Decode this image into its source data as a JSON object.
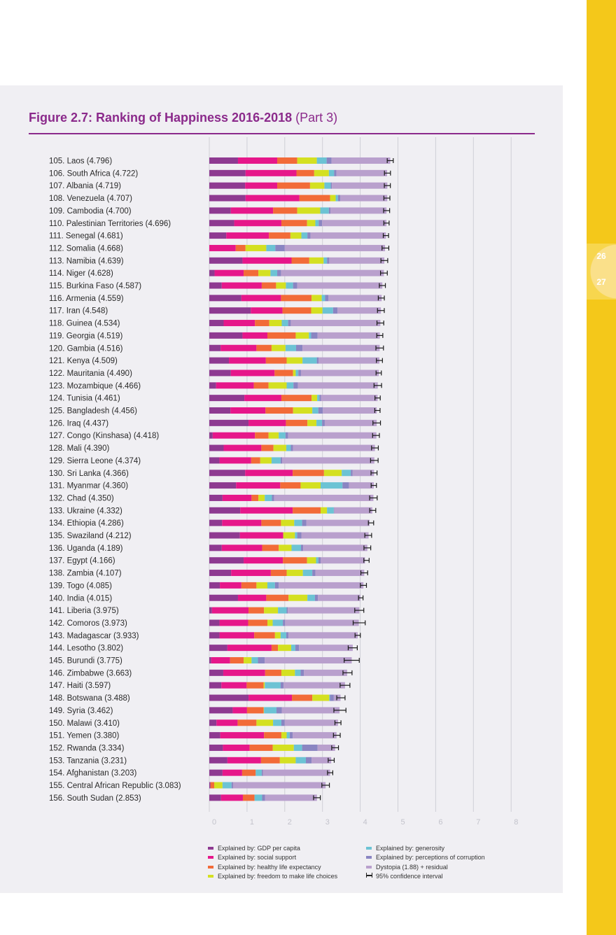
{
  "page": {
    "title_bold": "Figure 2.7: Ranking of Happiness 2016-2018",
    "title_rest": "(Part 3)",
    "page_numbers": [
      "26",
      "27"
    ]
  },
  "colors": {
    "gdp": "#8e3a91",
    "social": "#e6178a",
    "health": "#f26b38",
    "freedom": "#d4e021",
    "generosity": "#6cc3d4",
    "corruption": "#8a85c2",
    "dystopia": "#b9a0cd",
    "grid": "#cfcfd6",
    "accent": "#8b2a8b",
    "yellow": "#f4c81a"
  },
  "chart_data": {
    "type": "bar",
    "orientation": "horizontal-stacked",
    "title": "Figure 2.7: Ranking of Happiness 2016-2018 (Part 3)",
    "xlim": [
      0,
      8
    ],
    "xticks": [
      "0",
      "1",
      "2",
      "3",
      "4",
      "5",
      "6",
      "7",
      "8"
    ],
    "grid": true,
    "legend_position": "bottom",
    "legend": [
      {
        "key": "gdp",
        "label": "Explained by: GDP per capita"
      },
      {
        "key": "social",
        "label": "Explained by: social support"
      },
      {
        "key": "health",
        "label": "Explained by: healthy life expectancy"
      },
      {
        "key": "freedom",
        "label": "Explained by: freedom to make life choices"
      },
      {
        "key": "generosity",
        "label": "Explained by: generosity"
      },
      {
        "key": "corruption",
        "label": "Explained by: perceptions of corruption"
      },
      {
        "key": "dystopia",
        "label": "Dystopia (1.88) + residual"
      },
      {
        "key": "ci",
        "label": "95% confidence interval"
      }
    ],
    "series_order": [
      "gdp",
      "social",
      "health",
      "freedom",
      "generosity",
      "corruption",
      "dystopia"
    ],
    "rows": [
      {
        "label": "105.  Laos (4.796)",
        "score": 4.796,
        "ci": 0.08,
        "v": [
          0.76,
          1.04,
          0.53,
          0.52,
          0.26,
          0.13,
          1.556
        ]
      },
      {
        "label": "106.  South Africa (4.722)",
        "score": 4.722,
        "ci": 0.08,
        "v": [
          0.96,
          1.35,
          0.47,
          0.39,
          0.14,
          0.06,
          1.342
        ]
      },
      {
        "label": "107.  Albania (4.719)",
        "score": 4.719,
        "ci": 0.08,
        "v": [
          0.95,
          0.85,
          0.87,
          0.38,
          0.17,
          0.03,
          1.469
        ]
      },
      {
        "label": "108.  Venezuela (4.707)",
        "score": 4.707,
        "ci": 0.08,
        "v": [
          0.96,
          1.43,
          0.81,
          0.15,
          0.06,
          0.06,
          1.247
        ]
      },
      {
        "label": "109.  Cambodia (4.700)",
        "score": 4.7,
        "ci": 0.08,
        "v": [
          0.57,
          1.12,
          0.64,
          0.61,
          0.23,
          0.04,
          1.486
        ]
      },
      {
        "label": "110.  Palestinian Territories (4.696)",
        "score": 4.696,
        "ci": 0.07,
        "v": [
          0.66,
          1.25,
          0.68,
          0.22,
          0.09,
          0.09,
          1.706
        ]
      },
      {
        "label": "111.   Senegal (4.681)",
        "score": 4.681,
        "ci": 0.07,
        "v": [
          0.45,
          1.13,
          0.57,
          0.29,
          0.16,
          0.08,
          2.001
        ]
      },
      {
        "label": "112.   Somalia (4.668)",
        "score": 4.668,
        "ci": 0.09,
        "v": [
          0.0,
          0.7,
          0.26,
          0.55,
          0.24,
          0.25,
          2.658
        ]
      },
      {
        "label": "113.   Namibia (4.639)",
        "score": 4.639,
        "ci": 0.09,
        "v": [
          0.88,
          1.3,
          0.47,
          0.38,
          0.09,
          0.06,
          1.459
        ]
      },
      {
        "label": "114.   Niger (4.628)",
        "score": 4.628,
        "ci": 0.09,
        "v": [
          0.14,
          0.77,
          0.39,
          0.32,
          0.18,
          0.1,
          2.728
        ]
      },
      {
        "label": "115.   Burkina Faso (4.587)",
        "score": 4.587,
        "ci": 0.08,
        "v": [
          0.33,
          1.06,
          0.38,
          0.26,
          0.19,
          0.11,
          2.257
        ]
      },
      {
        "label": "116.   Armenia (4.559)",
        "score": 4.559,
        "ci": 0.08,
        "v": [
          0.85,
          1.05,
          0.81,
          0.27,
          0.09,
          0.09,
          1.409
        ]
      },
      {
        "label": "117.   Iran (4.548)",
        "score": 4.548,
        "ci": 0.09,
        "v": [
          1.1,
          0.84,
          0.76,
          0.3,
          0.28,
          0.12,
          1.148
        ]
      },
      {
        "label": "118.   Guinea (4.534)",
        "score": 4.534,
        "ci": 0.09,
        "v": [
          0.38,
          0.83,
          0.38,
          0.33,
          0.17,
          0.07,
          2.374
        ]
      },
      {
        "label": "119.   Georgia (4.519)",
        "score": 4.519,
        "ci": 0.08,
        "v": [
          0.88,
          0.66,
          0.75,
          0.35,
          0.06,
          0.17,
          1.649
        ]
      },
      {
        "label": "120.   Gambia (4.516)",
        "score": 4.516,
        "ci": 0.1,
        "v": [
          0.3,
          0.95,
          0.4,
          0.37,
          0.28,
          0.17,
          2.046
        ]
      },
      {
        "label": "121.   Kenya (4.509)",
        "score": 4.509,
        "ci": 0.08,
        "v": [
          0.52,
          0.98,
          0.55,
          0.42,
          0.38,
          0.05,
          1.609
        ]
      },
      {
        "label": "122.   Mauritania (4.490)",
        "score": 4.49,
        "ci": 0.07,
        "v": [
          0.57,
          1.16,
          0.49,
          0.07,
          0.07,
          0.07,
          2.063
        ]
      },
      {
        "label": "123.   Mozambique (4.466)",
        "score": 4.466,
        "ci": 0.1,
        "v": [
          0.18,
          1.0,
          0.39,
          0.48,
          0.18,
          0.12,
          2.116
        ]
      },
      {
        "label": "124.   Tunisia (4.461)",
        "score": 4.461,
        "ci": 0.07,
        "v": [
          0.93,
          0.98,
          0.8,
          0.15,
          0.06,
          0.04,
          1.501
        ]
      },
      {
        "label": "125.   Bangladesh (4.456)",
        "score": 4.456,
        "ci": 0.07,
        "v": [
          0.56,
          0.93,
          0.73,
          0.51,
          0.16,
          0.12,
          1.426
        ]
      },
      {
        "label": "126.   Iraq (4.437)",
        "score": 4.437,
        "ci": 0.1,
        "v": [
          1.04,
          0.99,
          0.57,
          0.24,
          0.15,
          0.07,
          1.377
        ]
      },
      {
        "label": "127.   Congo (Kinshasa) (4.418)",
        "score": 4.418,
        "ci": 0.09,
        "v": [
          0.09,
          1.12,
          0.36,
          0.27,
          0.18,
          0.07,
          2.338
        ]
      },
      {
        "label": "128.   Mali (4.390)",
        "score": 4.39,
        "ci": 0.09,
        "v": [
          0.38,
          1.0,
          0.32,
          0.34,
          0.12,
          0.06,
          2.17
        ]
      },
      {
        "label": "129.   Sierra Leone (4.374)",
        "score": 4.374,
        "ci": 0.1,
        "v": [
          0.27,
          0.84,
          0.24,
          0.3,
          0.24,
          0.04,
          2.444
        ]
      },
      {
        "label": "130.   Sri Lanka (4.366)",
        "score": 4.366,
        "ci": 0.08,
        "v": [
          0.95,
          1.26,
          0.83,
          0.47,
          0.24,
          0.05,
          0.566
        ]
      },
      {
        "label": "131.   Myanmar (4.360)",
        "score": 4.36,
        "ci": 0.07,
        "v": [
          0.71,
          1.17,
          0.54,
          0.53,
          0.58,
          0.17,
          0.659
        ]
      },
      {
        "label": "132.   Chad (4.350)",
        "score": 4.35,
        "ci": 0.1,
        "v": [
          0.35,
          0.77,
          0.18,
          0.17,
          0.19,
          0.06,
          2.63
        ]
      },
      {
        "label": "133.   Ukraine (4.332)",
        "score": 4.332,
        "ci": 0.08,
        "v": [
          0.82,
          1.39,
          0.74,
          0.17,
          0.18,
          0.01,
          1.012
        ]
      },
      {
        "label": "134.   Ethiopia (4.286)",
        "score": 4.286,
        "ci": 0.07,
        "v": [
          0.34,
          1.04,
          0.52,
          0.35,
          0.21,
          0.11,
          1.676
        ]
      },
      {
        "label": "135.   Swaziland (4.212)",
        "score": 4.212,
        "ci": 0.09,
        "v": [
          0.81,
          1.15,
          0.0,
          0.31,
          0.06,
          0.11,
          1.782
        ]
      },
      {
        "label": "136.   Uganda (4.189)",
        "score": 4.189,
        "ci": 0.09,
        "v": [
          0.33,
          1.07,
          0.44,
          0.34,
          0.25,
          0.06,
          1.699
        ]
      },
      {
        "label": "137.   Egypt (4.166)",
        "score": 4.166,
        "ci": 0.07,
        "v": [
          0.91,
          1.04,
          0.64,
          0.24,
          0.06,
          0.06,
          1.176
        ]
      },
      {
        "label": "138.   Zambia (4.107)",
        "score": 4.107,
        "ci": 0.09,
        "v": [
          0.58,
          1.05,
          0.42,
          0.43,
          0.25,
          0.08,
          1.297
        ]
      },
      {
        "label": "139.   Togo (4.085)",
        "score": 4.085,
        "ci": 0.08,
        "v": [
          0.28,
          0.57,
          0.4,
          0.29,
          0.2,
          0.1,
          2.245
        ]
      },
      {
        "label": "140.   India (4.015)",
        "score": 4.015,
        "ci": 0.06,
        "v": [
          0.76,
          0.75,
          0.59,
          0.5,
          0.2,
          0.08,
          1.125
        ]
      },
      {
        "label": "141.   Liberia (3.975)",
        "score": 3.975,
        "ci": 0.12,
        "v": [
          0.07,
          0.97,
          0.41,
          0.37,
          0.23,
          0.03,
          1.898
        ]
      },
      {
        "label": "142.   Comoros (3.973)",
        "score": 3.973,
        "ci": 0.16,
        "v": [
          0.27,
          0.76,
          0.51,
          0.14,
          0.27,
          0.06,
          1.953
        ]
      },
      {
        "label": "143.   Madagascar (3.933)",
        "score": 3.933,
        "ci": 0.07,
        "v": [
          0.27,
          0.92,
          0.55,
          0.15,
          0.15,
          0.06,
          1.833
        ]
      },
      {
        "label": "144.   Lesotho (3.802)",
        "score": 3.802,
        "ci": 0.12,
        "v": [
          0.48,
          1.17,
          0.17,
          0.35,
          0.11,
          0.1,
          1.422
        ]
      },
      {
        "label": "145.   Burundi (3.775)",
        "score": 3.775,
        "ci": 0.2,
        "v": [
          0.05,
          0.5,
          0.36,
          0.21,
          0.17,
          0.18,
          2.305
        ]
      },
      {
        "label": "146.   Zimbabwe (3.663)",
        "score": 3.663,
        "ci": 0.12,
        "v": [
          0.37,
          1.11,
          0.43,
          0.36,
          0.15,
          0.09,
          1.143
        ]
      },
      {
        "label": "147.   Haiti (3.597)",
        "score": 3.597,
        "ci": 0.13,
        "v": [
          0.32,
          0.67,
          0.45,
          0.03,
          0.42,
          0.08,
          1.627
        ]
      },
      {
        "label": "148.   Botswana (3.488)",
        "score": 3.488,
        "ci": 0.11,
        "v": [
          1.04,
          1.15,
          0.54,
          0.45,
          0.02,
          0.1,
          0.178
        ]
      },
      {
        "label": "149.   Syria (3.462)",
        "score": 3.462,
        "ci": 0.16,
        "v": [
          0.62,
          0.38,
          0.44,
          0.01,
          0.33,
          0.14,
          1.532
        ]
      },
      {
        "label": "150.   Malawi (3.410)",
        "score": 3.41,
        "ci": 0.08,
        "v": [
          0.19,
          0.56,
          0.5,
          0.44,
          0.22,
          0.09,
          1.411
        ]
      },
      {
        "label": "151.   Yemen (3.380)",
        "score": 3.38,
        "ci": 0.09,
        "v": [
          0.29,
          1.16,
          0.46,
          0.14,
          0.08,
          0.08,
          1.162
        ]
      },
      {
        "label": "152.   Rwanda (3.334)",
        "score": 3.334,
        "ci": 0.09,
        "v": [
          0.36,
          0.71,
          0.61,
          0.56,
          0.22,
          0.41,
          0.464
        ]
      },
      {
        "label": "153.   Tanzania (3.231)",
        "score": 3.231,
        "ci": 0.08,
        "v": [
          0.48,
          0.89,
          0.5,
          0.42,
          0.27,
          0.15,
          0.521
        ]
      },
      {
        "label": "154.   Afghanistan (3.203)",
        "score": 3.203,
        "ci": 0.07,
        "v": [
          0.35,
          0.52,
          0.36,
          0.0,
          0.16,
          0.03,
          1.783
        ]
      },
      {
        "label": "155.   Central African Republic (3.083)",
        "score": 3.083,
        "ci": 0.1,
        "v": [
          0.03,
          0.0,
          0.1,
          0.22,
          0.24,
          0.04,
          2.453
        ]
      },
      {
        "label": "156.   South Sudan (2.853)",
        "score": 2.853,
        "ci": 0.09,
        "v": [
          0.31,
          0.58,
          0.31,
          0.0,
          0.2,
          0.08,
          1.373
        ]
      }
    ]
  }
}
